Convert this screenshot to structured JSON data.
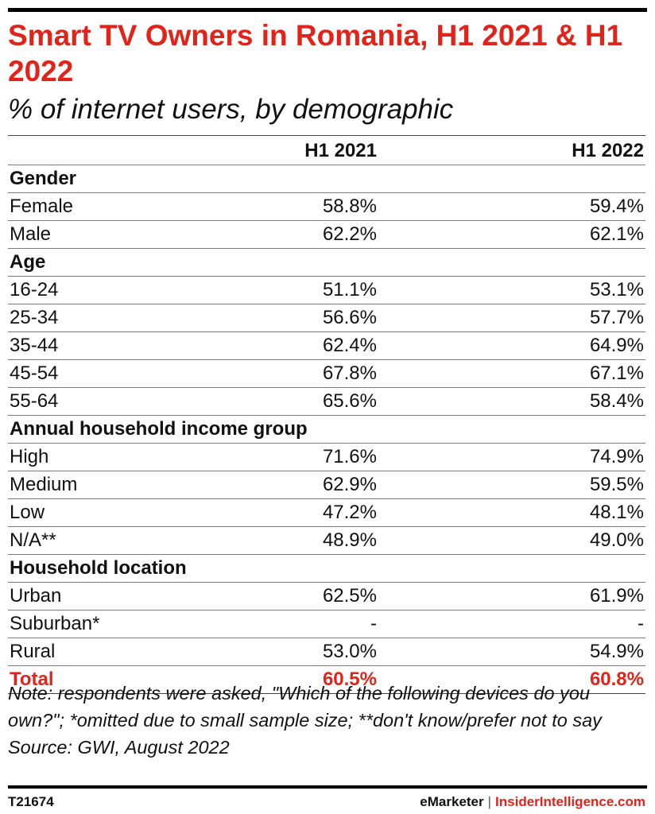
{
  "chart_data": {
    "type": "table",
    "title": "Smart TV Owners in Romania, H1 2021 & H1 2022",
    "subtitle": "% of internet users, by demographic",
    "columns": [
      "",
      "H1 2021",
      "H1 2022"
    ],
    "groups": [
      {
        "name": "Gender",
        "rows": [
          {
            "label": "Female",
            "values": [
              "58.8%",
              "59.4%"
            ]
          },
          {
            "label": "Male",
            "values": [
              "62.2%",
              "62.1%"
            ]
          }
        ]
      },
      {
        "name": "Age",
        "rows": [
          {
            "label": "16-24",
            "values": [
              "51.1%",
              "53.1%"
            ]
          },
          {
            "label": "25-34",
            "values": [
              "56.6%",
              "57.7%"
            ]
          },
          {
            "label": "35-44",
            "values": [
              "62.4%",
              "64.9%"
            ]
          },
          {
            "label": "45-54",
            "values": [
              "67.8%",
              "67.1%"
            ]
          },
          {
            "label": "55-64",
            "values": [
              "65.6%",
              "58.4%"
            ]
          }
        ]
      },
      {
        "name": "Annual household income group",
        "rows": [
          {
            "label": "High",
            "values": [
              "71.6%",
              "74.9%"
            ]
          },
          {
            "label": "Medium",
            "values": [
              "62.9%",
              "59.5%"
            ]
          },
          {
            "label": "Low",
            "values": [
              "47.2%",
              "48.1%"
            ]
          },
          {
            "label": "N/A**",
            "values": [
              "48.9%",
              "49.0%"
            ]
          }
        ]
      },
      {
        "name": "Household location",
        "rows": [
          {
            "label": "Urban",
            "values": [
              "62.5%",
              "61.9%"
            ]
          },
          {
            "label": "Suburban*",
            "values": [
              "-",
              "-"
            ]
          },
          {
            "label": "Rural",
            "values": [
              "53.0%",
              "54.9%"
            ]
          }
        ]
      }
    ],
    "total": {
      "label": "Total",
      "values": [
        "60.5%",
        "60.8%"
      ]
    }
  },
  "notes": {
    "note": "Note: respondents were asked, \"Which of the following devices do you own?\"; *omitted due to small sample size; **don't know/prefer not to say",
    "source": "Source: GWI, August 2022"
  },
  "footer": {
    "id": "T21674",
    "brand1": "eMarketer",
    "separator": "|",
    "brand2": "InsiderIntelligence.com"
  },
  "colors": {
    "accent": "#e2231a",
    "text": "#111111",
    "rule": "#000000"
  }
}
